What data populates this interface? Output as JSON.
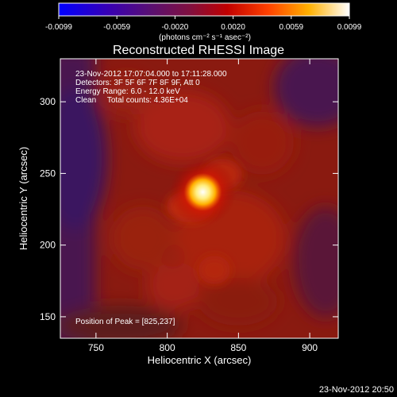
{
  "chart_data": {
    "type": "heatmap",
    "title": "Reconstructed RHESSI Image",
    "xlabel": "Heliocentric X (arcsec)",
    "ylabel": "Heliocentric Y (arcsec)",
    "xlim": [
      725,
      920
    ],
    "ylim": [
      135,
      330
    ],
    "x_ticks": [
      750,
      800,
      850,
      900
    ],
    "y_ticks": [
      150,
      200,
      250,
      300
    ],
    "colorbar": {
      "min": -0.0099,
      "max": 0.0099,
      "ticks": [
        "-0.0099",
        "-0.0059",
        "-0.0020",
        "0.0020",
        "0.0059",
        "0.0099"
      ],
      "label": "(photons cm⁻² s⁻¹ asec⁻²)",
      "colormap": [
        "#0000ff",
        "#4b00a0",
        "#8a0050",
        "#c80000",
        "#ff6a00",
        "#ffd000",
        "#ffffff"
      ]
    },
    "info_lines": [
      "23-Nov-2012 17:07:04.000 to 17:11:28.000",
      "Detectors: 3F 5F 6F 7F 8F 9F, Att 0",
      "Energy Range: 6.0 - 12.0 keV",
      "Clean     Total counts: 4.36E+04"
    ],
    "peak_note": "Position of Peak = [825,237]",
    "peak": {
      "x": 825,
      "y": 237
    }
  },
  "footer": {
    "timestamp": "23-Nov-2012 20:50"
  }
}
